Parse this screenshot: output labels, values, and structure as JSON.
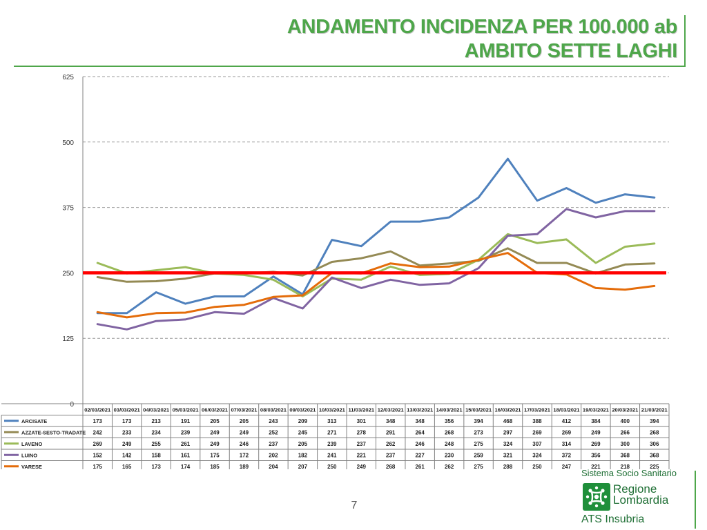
{
  "slide": {
    "title_line1": "ANDAMENTO INCIDENZA PER 100.000 ab",
    "title_line2": "AMBITO SETTE LAGHI",
    "page_number": "7"
  },
  "logo": {
    "system_text": "Sistema Socio Sanitario",
    "region_line1": "Regione",
    "region_line2": "Lombardia",
    "agency": "ATS Insubria",
    "icon": "regione-lombardia-rosa-camuna-icon"
  },
  "chart_data": {
    "type": "line",
    "categories": [
      "02/03/2021",
      "03/03/2021",
      "04/03/2021",
      "05/03/2021",
      "06/03/2021",
      "07/03/2021",
      "08/03/2021",
      "09/03/2021",
      "10/03/2021",
      "11/03/2021",
      "12/03/2021",
      "13/03/2021",
      "14/03/2021",
      "15/03/2021",
      "16/03/2021",
      "17/03/2021",
      "18/03/2021",
      "19/03/2021",
      "20/03/2021",
      "21/03/2021"
    ],
    "ylim": [
      0,
      625
    ],
    "yticks": [
      0,
      125,
      250,
      375,
      500,
      625
    ],
    "grid": "horizontal dashed",
    "threshold": {
      "value": 250,
      "color": "#ff0000"
    },
    "data_table": true,
    "series": [
      {
        "name": "ARCISATE",
        "color": "#4f81bd",
        "values": [
          173,
          173,
          213,
          191,
          205,
          205,
          243,
          209,
          313,
          301,
          348,
          348,
          356,
          394,
          468,
          388,
          412,
          384,
          400,
          394
        ]
      },
      {
        "name": "AZZATE-SESTO-TRADATE",
        "color": "#948a54",
        "values": [
          242,
          233,
          234,
          239,
          249,
          249,
          252,
          245,
          271,
          278,
          291,
          264,
          268,
          273,
          297,
          269,
          269,
          249,
          266,
          268
        ]
      },
      {
        "name": "LAVENO",
        "color": "#9bbb59",
        "values": [
          269,
          249,
          255,
          261,
          249,
          246,
          237,
          205,
          239,
          237,
          262,
          246,
          248,
          275,
          324,
          307,
          314,
          269,
          300,
          306
        ]
      },
      {
        "name": "LUINO",
        "color": "#8064a2",
        "values": [
          152,
          142,
          158,
          161,
          175,
          172,
          202,
          182,
          241,
          221,
          237,
          227,
          230,
          259,
          321,
          324,
          372,
          356,
          368,
          368
        ]
      },
      {
        "name": "VARESE",
        "color": "#e46c0a",
        "values": [
          175,
          165,
          173,
          174,
          185,
          189,
          204,
          207,
          250,
          249,
          268,
          261,
          262,
          275,
          288,
          250,
          247,
          221,
          218,
          225
        ]
      }
    ]
  }
}
